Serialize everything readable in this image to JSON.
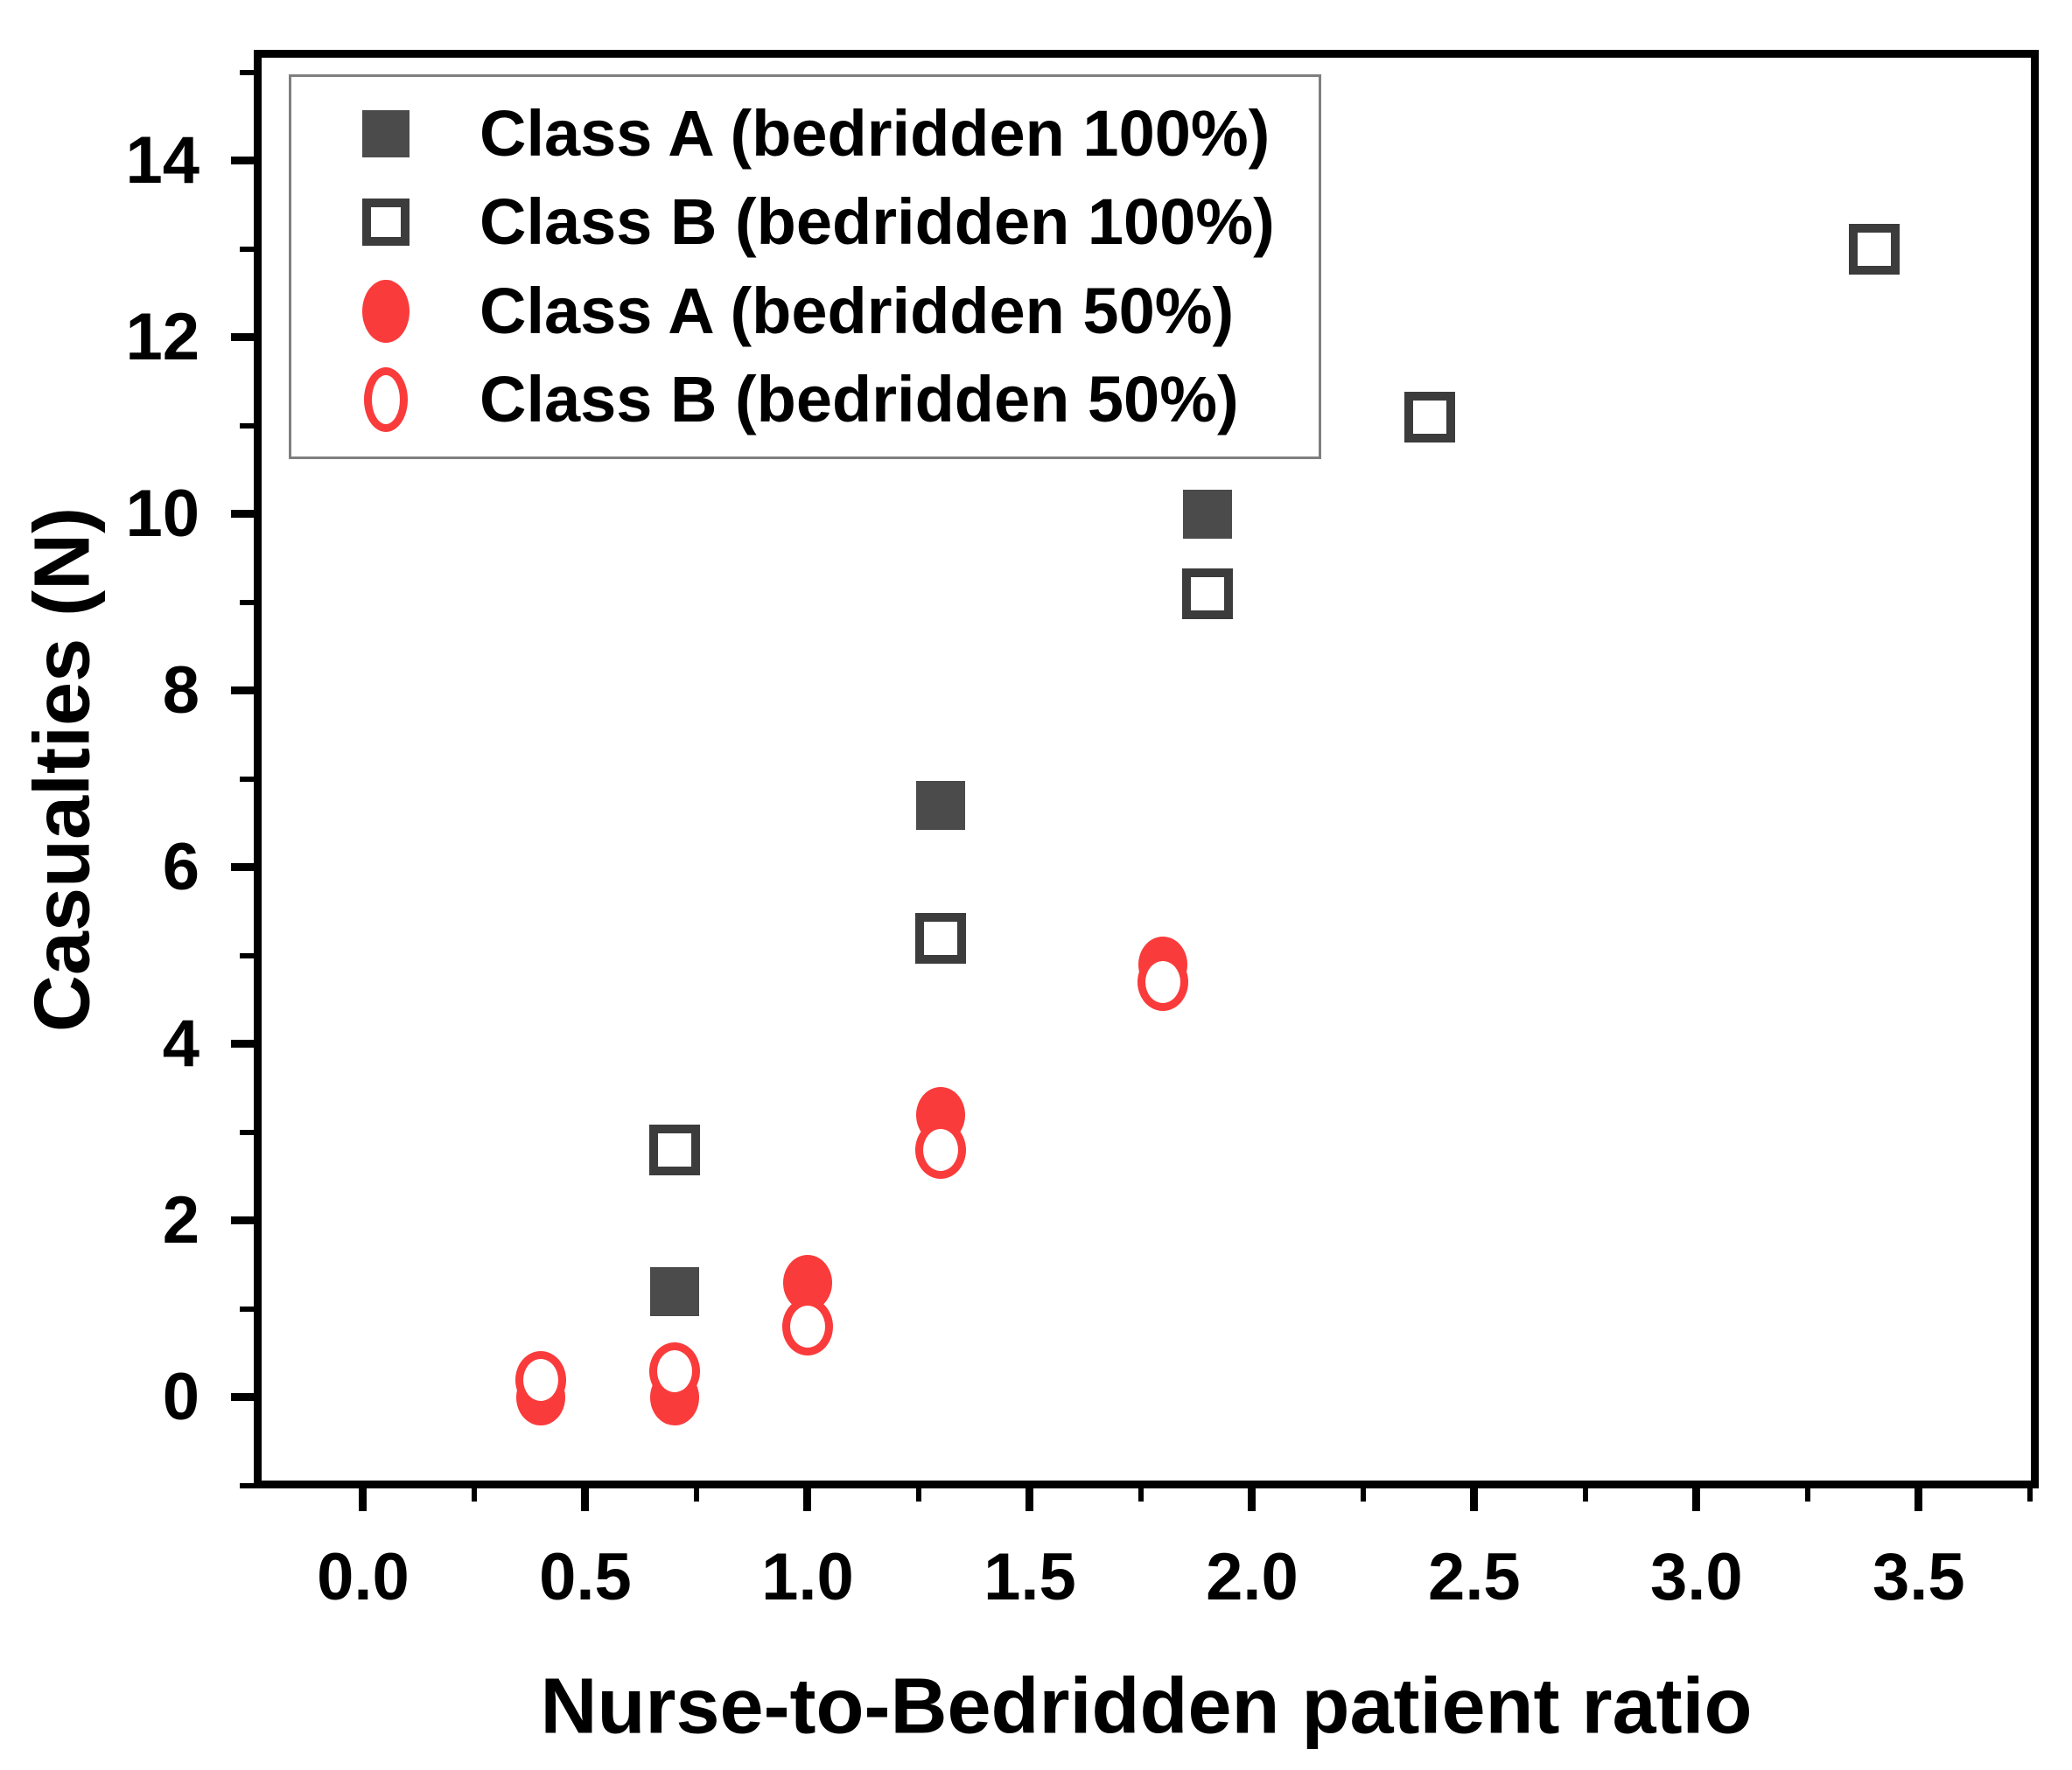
{
  "chart_data": {
    "type": "scatter",
    "title": "",
    "xlabel": "Nurse-to-Bedridden patient ratio",
    "ylabel": "Casualties (N)",
    "xlim": [
      -0.246,
      3.77
    ],
    "ylim": [
      -1.03,
      15.257
    ],
    "grid": false,
    "legend_position": "top-left",
    "x_major_ticks": [
      0.0,
      0.5,
      1.0,
      1.5,
      2.0,
      2.5,
      3.0,
      3.5
    ],
    "x_major_labels": [
      "0.0",
      "0.5",
      "1.0",
      "1.5",
      "2.0",
      "2.5",
      "3.0",
      "3.5"
    ],
    "x_minor_ticks": [
      0.25,
      0.75,
      1.25,
      1.75,
      2.25,
      2.75,
      3.25,
      3.75
    ],
    "y_major_ticks": [
      0,
      2,
      4,
      6,
      8,
      10,
      12,
      14
    ],
    "y_major_labels": [
      "0",
      "2",
      "4",
      "6",
      "8",
      "10",
      "12",
      "14"
    ],
    "y_minor_ticks": [
      -1,
      1,
      3,
      5,
      7,
      9,
      11,
      13,
      15
    ],
    "series": [
      {
        "name": "Class A (bedridden 100%)",
        "marker": "square-filled",
        "color": "#4b4b4b",
        "points": [
          [
            0.7,
            1.2
          ],
          [
            1.3,
            6.7
          ],
          [
            1.9,
            10.0
          ]
        ]
      },
      {
        "name": "Class B (bedridden 100%)",
        "marker": "square-open",
        "color": "#3c3c3c",
        "points": [
          [
            0.7,
            2.8
          ],
          [
            1.3,
            5.2
          ],
          [
            1.9,
            9.1
          ],
          [
            2.4,
            11.1
          ],
          [
            3.4,
            13.0
          ]
        ]
      },
      {
        "name": "Class A (bedridden 50%)",
        "marker": "circle-filled",
        "color": "#fa3b3b",
        "points": [
          [
            0.4,
            0.0
          ],
          [
            0.7,
            0.0
          ],
          [
            1.0,
            1.3
          ],
          [
            1.3,
            3.2
          ],
          [
            1.8,
            4.9
          ]
        ]
      },
      {
        "name": "Class B (bedridden 50%)",
        "marker": "circle-open",
        "color": "#fa3b3b",
        "points": [
          [
            0.4,
            0.2
          ],
          [
            0.7,
            0.3
          ],
          [
            1.0,
            0.8
          ],
          [
            1.3,
            2.8
          ],
          [
            1.8,
            4.7
          ]
        ]
      }
    ],
    "colors": {
      "axis": "#000000",
      "background": "#ffffff",
      "legend_border": "#7f7f7f",
      "class_a_gray": "#4b4b4b",
      "class_b_outline": "#3c3c3c",
      "red": "#fa3b3b"
    }
  }
}
